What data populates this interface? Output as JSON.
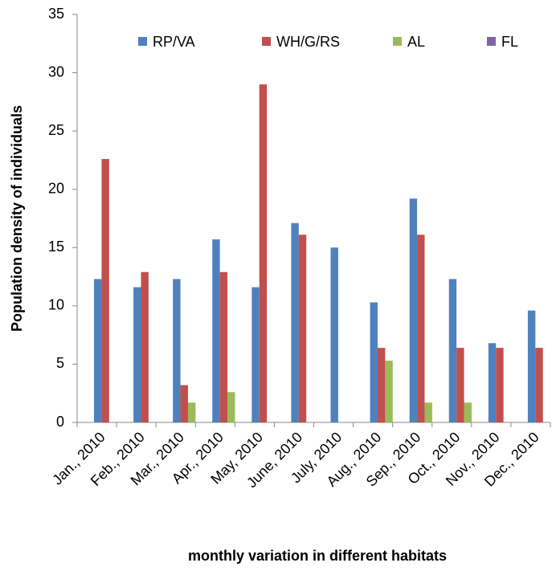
{
  "chart_data": {
    "type": "bar",
    "x_label": "monthly variation in different habitats",
    "y_label": "Population density of individuals",
    "categories": [
      "Jan., 2010",
      "Feb., 2010",
      "Mar., 2010",
      "Apr., 2010",
      "May, 2010",
      "June, 2010",
      "July, 2010",
      "Aug., 2010",
      "Sep., 2010",
      "Oct., 2010",
      "Nov., 2010",
      "Dec., 2010"
    ],
    "series": [
      {
        "name": "RP/VA",
        "color": "#4f81bd",
        "values": [
          12.3,
          11.6,
          12.3,
          15.7,
          11.6,
          17.1,
          15,
          10.3,
          19.2,
          12.3,
          6.8,
          9.6
        ]
      },
      {
        "name": "WH/G/RS",
        "color": "#c0504d",
        "values": [
          22.6,
          12.9,
          3.2,
          12.9,
          29,
          16.1,
          0,
          6.4,
          16.1,
          6.4,
          6.4,
          6.4
        ]
      },
      {
        "name": "AL",
        "color": "#9bbb59",
        "values": [
          0,
          0,
          1.7,
          2.6,
          0,
          0,
          0,
          5.3,
          1.7,
          1.7,
          0,
          0
        ]
      },
      {
        "name": "FL",
        "color": "#8064a2",
        "values": [
          0,
          0,
          0,
          0,
          0,
          0,
          0,
          0,
          0,
          0,
          0,
          0
        ]
      }
    ],
    "ylim": [
      0,
      35
    ],
    "yticks": [
      0,
      5,
      10,
      15,
      20,
      25,
      30,
      35
    ],
    "grid": false,
    "legend": "top"
  }
}
